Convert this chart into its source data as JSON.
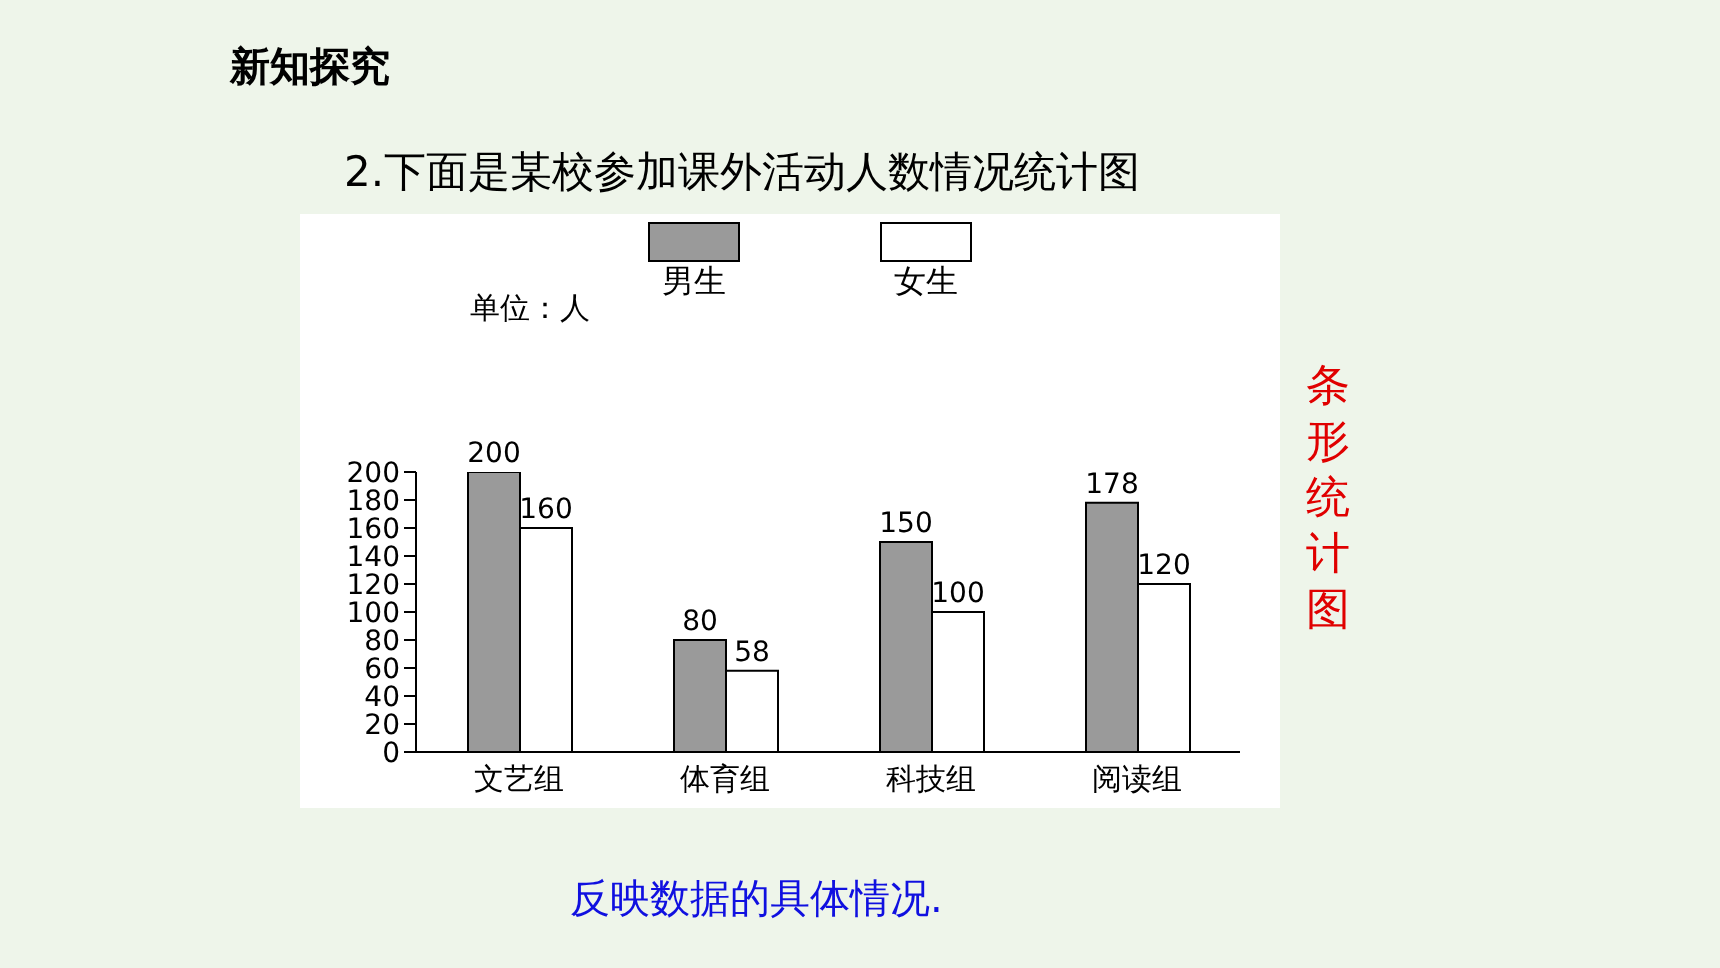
{
  "chart_data": {
    "type": "bar",
    "title": "2.下面是某校参加课外活动人数情况统计图",
    "ylabel": "单位：人",
    "categories": [
      "文艺组",
      "体育组",
      "科技组",
      "阅读组"
    ],
    "series": [
      {
        "name": "男生",
        "color": "#9a9a9a",
        "values": [
          200,
          80,
          150,
          178
        ]
      },
      {
        "name": "女生",
        "color": "#ffffff",
        "values": [
          160,
          58,
          100,
          120
        ]
      }
    ],
    "ylim": [
      0,
      200
    ],
    "yticks": [
      0,
      20,
      40,
      60,
      80,
      100,
      120,
      140,
      160,
      180,
      200
    ],
    "grid": false,
    "legend": "top",
    "data_labels": true,
    "annotations": [
      "新知探究",
      "条形统计图",
      "反映数据的具体情况."
    ]
  }
}
